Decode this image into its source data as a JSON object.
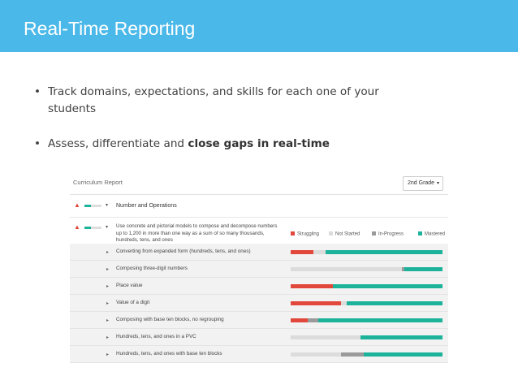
{
  "slide": {
    "title": "Real-Time Reporting",
    "bullets": [
      {
        "text": "Track domains, expectations, and skills for each one of your students",
        "bold": ""
      },
      {
        "text": "Assess, differentiate and ",
        "bold": "close gaps in real-time"
      }
    ],
    "bullet_glyph": "•"
  },
  "report": {
    "title": "Curriculum Report",
    "grade_select": {
      "value": "2nd Grade",
      "caret": "▾"
    },
    "warning_icon_glyph": "▲",
    "domain": {
      "label": "Number and Operations",
      "expand_glyph": "▾"
    },
    "expectation": {
      "text": "Use concrete and pictorial models to compose and decompose numbers up to 1,200 in more than one way as a sum of so many thousands, hundreds, tens, and ones",
      "expand_glyph": "▾"
    },
    "legend": [
      {
        "label": "Struggling",
        "color": "#e2473b"
      },
      {
        "label": "Not Started",
        "color": "#dcdcdc"
      },
      {
        "label": "In-Progress",
        "color": "#9a9a9a"
      },
      {
        "label": "Mastered",
        "color": "#1db39b"
      }
    ],
    "skill_expand_glyph": "▸",
    "skills": [
      {
        "label": "Converting from expanded form (hundreds, tens, and ones)",
        "struggling": 15,
        "not_started": 8,
        "in_progress": 0,
        "mastered": 77
      },
      {
        "label": "Composing three-digit numbers",
        "struggling": 0,
        "not_started": 73,
        "in_progress": 2,
        "mastered": 25
      },
      {
        "label": "Place value",
        "struggling": 28,
        "not_started": 0,
        "in_progress": 0,
        "mastered": 72
      },
      {
        "label": "Value of a digit",
        "struggling": 33,
        "not_started": 4,
        "in_progress": 0,
        "mastered": 63
      },
      {
        "label": "Composing with base ten blocks, no regrouping",
        "struggling": 11,
        "not_started": 0,
        "in_progress": 7,
        "mastered": 82
      },
      {
        "label": "Hundreds, tens, and ones in a PVC",
        "struggling": 0,
        "not_started": 46,
        "in_progress": 0,
        "mastered": 54
      },
      {
        "label": "Hundreds, tens, and ones with base ten blocks",
        "struggling": 0,
        "not_started": 33,
        "in_progress": 15,
        "mastered": 52
      }
    ]
  }
}
